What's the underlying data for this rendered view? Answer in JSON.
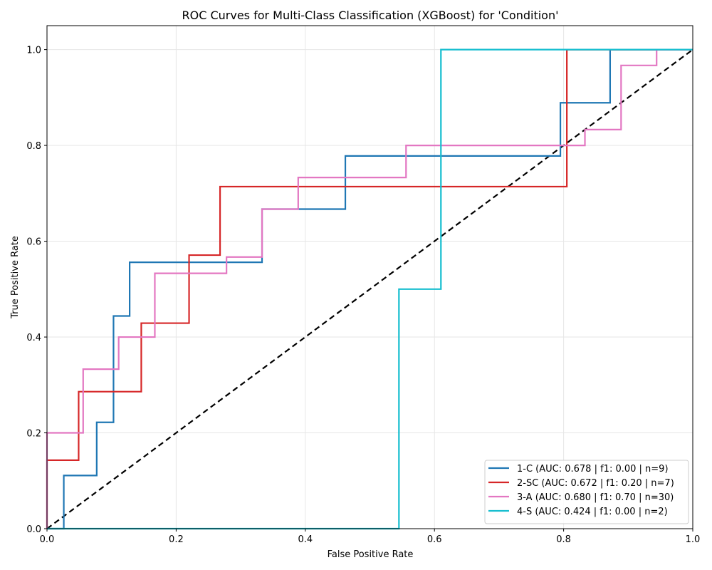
{
  "chart_data": {
    "type": "line",
    "title": "ROC Curves for Multi-Class Classification (XGBoost) for 'Condition'",
    "xlabel": "False Positive Rate",
    "ylabel": "True Positive Rate",
    "xlim": [
      0.0,
      1.0
    ],
    "ylim": [
      0.0,
      1.05
    ],
    "x_ticks": [
      "0.0",
      "0.2",
      "0.4",
      "0.6",
      "0.8",
      "1.0"
    ],
    "y_ticks": [
      "0.0",
      "0.2",
      "0.4",
      "0.6",
      "0.8",
      "1.0"
    ],
    "grid": true,
    "legend_position": "lower-right",
    "series": [
      {
        "name": "1-C (AUC: 0.678 | f1: 0.00 | n=9)",
        "color": "#1f77b4",
        "points": [
          [
            0,
            0
          ],
          [
            0.026,
            0
          ],
          [
            0.026,
            0.111
          ],
          [
            0.077,
            0.111
          ],
          [
            0.077,
            0.222
          ],
          [
            0.103,
            0.222
          ],
          [
            0.103,
            0.444
          ],
          [
            0.128,
            0.444
          ],
          [
            0.128,
            0.556
          ],
          [
            0.333,
            0.556
          ],
          [
            0.333,
            0.667
          ],
          [
            0.462,
            0.667
          ],
          [
            0.462,
            0.778
          ],
          [
            0.795,
            0.778
          ],
          [
            0.795,
            0.889
          ],
          [
            0.872,
            0.889
          ],
          [
            0.872,
            1.0
          ],
          [
            1.0,
            1.0
          ]
        ]
      },
      {
        "name": "2-SC (AUC: 0.672 | f1: 0.20 | n=7)",
        "color": "#d62728",
        "points": [
          [
            0,
            0
          ],
          [
            0,
            0.143
          ],
          [
            0.049,
            0.143
          ],
          [
            0.049,
            0.286
          ],
          [
            0.146,
            0.286
          ],
          [
            0.146,
            0.429
          ],
          [
            0.22,
            0.429
          ],
          [
            0.22,
            0.571
          ],
          [
            0.268,
            0.571
          ],
          [
            0.268,
            0.714
          ],
          [
            0.805,
            0.714
          ],
          [
            0.805,
            1.0
          ],
          [
            1.0,
            1.0
          ]
        ]
      },
      {
        "name": "3-A (AUC: 0.680 | f1: 0.70 | n=30)",
        "color": "#e377c2",
        "points": [
          [
            0,
            0
          ],
          [
            0,
            0.2
          ],
          [
            0.056,
            0.2
          ],
          [
            0.056,
            0.333
          ],
          [
            0.111,
            0.333
          ],
          [
            0.111,
            0.4
          ],
          [
            0.167,
            0.4
          ],
          [
            0.167,
            0.533
          ],
          [
            0.278,
            0.533
          ],
          [
            0.278,
            0.567
          ],
          [
            0.333,
            0.567
          ],
          [
            0.333,
            0.667
          ],
          [
            0.389,
            0.667
          ],
          [
            0.389,
            0.733
          ],
          [
            0.556,
            0.733
          ],
          [
            0.556,
            0.8
          ],
          [
            0.833,
            0.8
          ],
          [
            0.833,
            0.833
          ],
          [
            0.889,
            0.833
          ],
          [
            0.889,
            0.967
          ],
          [
            0.944,
            0.967
          ],
          [
            0.944,
            1.0
          ],
          [
            1.0,
            1.0
          ]
        ]
      },
      {
        "name": "4-S (AUC: 0.424 | f1: 0.00 | n=2)",
        "color": "#17becf",
        "points": [
          [
            0,
            0
          ],
          [
            0.545,
            0
          ],
          [
            0.545,
            0.5
          ],
          [
            0.61,
            0.5
          ],
          [
            0.61,
            1.0
          ],
          [
            1.0,
            1.0
          ]
        ]
      }
    ],
    "reference_line": {
      "points": [
        [
          0,
          0
        ],
        [
          1,
          1
        ]
      ],
      "color": "#000000",
      "style": "dashed"
    }
  }
}
